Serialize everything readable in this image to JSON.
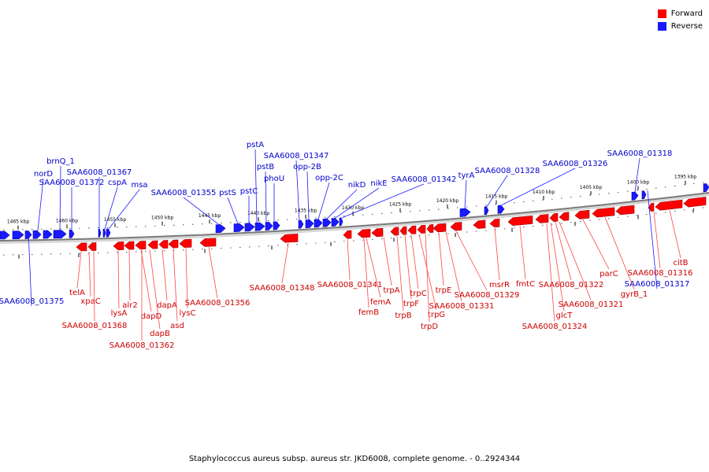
{
  "legend": {
    "forward": "Forward",
    "reverse": "Reverse",
    "forward_color": "#ff0000",
    "reverse_color": "#1a1aff"
  },
  "caption": "Staphylococcus aureus subsp. aureus str. JKD6008, complete genome. - 0..2924344",
  "ticks": [
    "1465 kbp",
    "1460 kbp",
    "1455 kbp",
    "1450 kbp",
    "1445 kbp",
    "1440 kbp",
    "1435 kbp",
    "1430 kbp",
    "1425 kbp",
    "1420 kbp",
    "1415 kbp",
    "1410 kbp",
    "1405 kbp",
    "1400 kbp",
    "1395 kbp"
  ],
  "reverse_genes": [
    "brnQ_1",
    "norD",
    "SAA6008_01367",
    "SAA6008_01372",
    "cspA",
    "msa",
    "SAA6008_01355",
    "pstS",
    "pstC",
    "pstA",
    "pstB",
    "phoU",
    "SAA6008_01347",
    "opp-2B",
    "opp-2C",
    "nikD",
    "nikE",
    "SAA6008_01342",
    "tyrA",
    "SAA6008_01328",
    "SAA6008_01326",
    "SAA6008_01318",
    "SAA6008_01375",
    "SAA6008_01317"
  ],
  "forward_genes": [
    "telA",
    "xpaC",
    "SAA6008_01368",
    "lysA",
    "alr2",
    "dapD",
    "dapB",
    "SAA6008_01362",
    "dapA",
    "asd",
    "lysC",
    "SAA6008_01356",
    "SAA6008_01348",
    "SAA6008_01341",
    "femA",
    "femB",
    "trpA",
    "trpB",
    "trpF",
    "trpC",
    "trpG",
    "trpD",
    "trpE",
    "SAA6008_01331",
    "SAA6008_01329",
    "msrR",
    "fmtC",
    "SAA6008_01322",
    "glcT",
    "SAA6008_01324",
    "SAA6008_01321",
    "parC",
    "gyrB_1",
    "SAA6008_01316",
    "citB"
  ]
}
